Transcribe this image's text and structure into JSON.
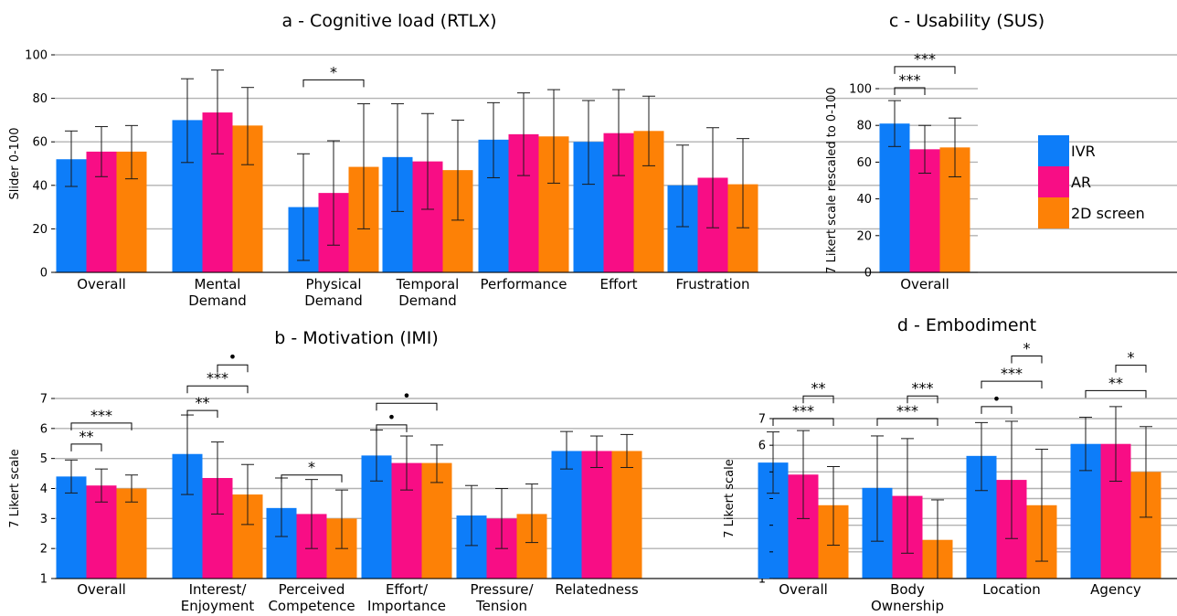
{
  "series_names": [
    "IVR",
    "AR",
    "2D screen"
  ],
  "colors": {
    "IVR": "#0d7df9",
    "AR": "#f80d85",
    "2D screen": "#fd8106"
  },
  "chart_data": [
    {
      "id": "a",
      "type": "bar",
      "title": "a - Cognitive load (RTLX)",
      "ylabel": "Slider 0-100",
      "ylim": [
        0,
        100
      ],
      "yticks": [
        0,
        20,
        40,
        60,
        80,
        100
      ],
      "grid": true,
      "categories": [
        "Overall",
        "Mental\nDemand",
        "Physical\nDemand",
        "Temporal\nDemand",
        "Performance",
        "Effort",
        "Frustration"
      ],
      "series": [
        {
          "name": "IVR",
          "values": [
            52,
            70,
            30,
            53,
            61,
            60,
            40
          ],
          "err_low": [
            39.5,
            50.5,
            5.5,
            28,
            43.5,
            40.5,
            21
          ],
          "err_high": [
            65,
            89,
            54.5,
            77.5,
            78,
            79,
            58.5
          ]
        },
        {
          "name": "AR",
          "values": [
            55.5,
            73.5,
            36.5,
            51,
            63.5,
            64,
            43.5
          ],
          "err_low": [
            44,
            54.5,
            12.5,
            29,
            44.5,
            44.5,
            20.5
          ],
          "err_high": [
            67,
            93,
            60.5,
            73,
            82.5,
            84,
            66.5
          ]
        },
        {
          "name": "2D screen",
          "values": [
            55.5,
            67.5,
            48.5,
            47,
            62.5,
            65,
            40.5
          ],
          "err_low": [
            43,
            49.5,
            20,
            24,
            41,
            49,
            20.5
          ],
          "err_high": [
            67.5,
            85,
            77.5,
            70,
            84,
            81,
            61.5
          ]
        }
      ],
      "significance": [
        {
          "category": 2,
          "from": 0,
          "to": 2,
          "level": 88.5,
          "label": "*"
        }
      ]
    },
    {
      "id": "b",
      "type": "bar",
      "title": "b - Motivation (IMI)",
      "ylabel": "7 Likert scale",
      "ylim": [
        1,
        7.5
      ],
      "yticks": [
        1,
        2,
        3,
        4,
        5,
        6,
        7
      ],
      "grid": true,
      "categories": [
        "Overall",
        "Interest/\nEnjoyment",
        "Perceived\nCompetence",
        "Effort/\nImportance",
        "Pressure/\nTension",
        "Relatedness"
      ],
      "series": [
        {
          "name": "IVR",
          "values": [
            4.4,
            5.15,
            3.35,
            5.1,
            3.1,
            5.25
          ],
          "err_low": [
            3.85,
            3.8,
            2.4,
            4.25,
            2.1,
            4.65
          ],
          "err_high": [
            4.95,
            6.45,
            4.35,
            5.95,
            4.1,
            5.9
          ]
        },
        {
          "name": "AR",
          "values": [
            4.1,
            4.35,
            3.15,
            4.85,
            3.0,
            5.25
          ],
          "err_low": [
            3.55,
            3.15,
            2.0,
            3.95,
            2.0,
            4.7
          ],
          "err_high": [
            4.65,
            5.55,
            4.3,
            5.75,
            4.0,
            5.75
          ]
        },
        {
          "name": "2D screen",
          "values": [
            4.0,
            3.8,
            3.0,
            4.85,
            3.15,
            5.25
          ],
          "err_low": [
            3.55,
            2.8,
            2.0,
            4.2,
            2.2,
            4.7
          ],
          "err_high": [
            4.45,
            4.8,
            3.95,
            5.45,
            4.15,
            5.8
          ]
        }
      ],
      "significance": [
        {
          "category": 0,
          "from": 0,
          "to": 1,
          "level": 5.48,
          "label": "**"
        },
        {
          "category": 0,
          "from": 0,
          "to": 2,
          "level": 6.18,
          "label": "***"
        },
        {
          "category": 1,
          "from": 0,
          "to": 1,
          "level": 6.6,
          "label": "**"
        },
        {
          "category": 1,
          "from": 0,
          "to": 2,
          "level": 7.42,
          "label": "***"
        },
        {
          "category": 1,
          "from": 1,
          "to": 2,
          "level": 8.12,
          "label": "•"
        },
        {
          "category": 2,
          "from": 0,
          "to": 2,
          "level": 4.45,
          "label": "*"
        },
        {
          "category": 3,
          "from": 0,
          "to": 1,
          "level": 6.12,
          "label": "•"
        },
        {
          "category": 3,
          "from": 0,
          "to": 2,
          "level": 6.84,
          "label": "•"
        }
      ]
    },
    {
      "id": "c",
      "type": "bar",
      "title": "c - Usability (SUS)",
      "ylabel": "7 Likert scale rescaled to 0-100",
      "ylim": [
        0,
        100
      ],
      "yticks": [
        0,
        20,
        40,
        60,
        80,
        100
      ],
      "grid": true,
      "categories": [
        "Overall"
      ],
      "series": [
        {
          "name": "IVR",
          "values": [
            81
          ],
          "err_low": [
            68.5
          ],
          "err_high": [
            93.5
          ]
        },
        {
          "name": "AR",
          "values": [
            67
          ],
          "err_low": [
            54
          ],
          "err_high": [
            80
          ]
        },
        {
          "name": "2D screen",
          "values": [
            68
          ],
          "err_low": [
            52
          ],
          "err_high": [
            84
          ]
        }
      ],
      "significance": [
        {
          "category": 0,
          "from": 0,
          "to": 1,
          "level": 100.5,
          "label": "***"
        },
        {
          "category": 0,
          "from": 0,
          "to": 2,
          "level": 112,
          "label": "***"
        }
      ]
    },
    {
      "id": "d",
      "type": "bar",
      "title": "d - Embodiment",
      "ylabel": "7 Likert scale",
      "ylim": [
        1,
        7.1
      ],
      "yticks": [
        1,
        2,
        3,
        4,
        5,
        6,
        7
      ],
      "grid": true,
      "categories": [
        "Overall",
        "Body\nOwnership",
        "Location",
        "Agency"
      ],
      "series": [
        {
          "name": "IVR",
          "values": [
            5.35,
            4.4,
            5.6,
            6.05
          ],
          "err_low": [
            4.2,
            2.4,
            4.3,
            5.05
          ],
          "err_high": [
            6.5,
            6.35,
            6.85,
            7.05
          ]
        },
        {
          "name": "AR",
          "values": [
            4.9,
            4.1,
            4.7,
            6.05
          ],
          "err_low": [
            3.25,
            1.95,
            2.5,
            4.65
          ],
          "err_high": [
            6.55,
            6.25,
            6.9,
            7.45
          ]
        },
        {
          "name": "2D screen",
          "values": [
            3.75,
            2.45,
            3.75,
            5.0
          ],
          "err_low": [
            2.25,
            1.0,
            1.65,
            3.3
          ],
          "err_high": [
            5.2,
            3.95,
            5.85,
            6.7
          ]
        }
      ],
      "significance": [
        {
          "category": 0,
          "from": 0,
          "to": 2,
          "level": 7.0,
          "label": "***"
        },
        {
          "category": 0,
          "from": 1,
          "to": 2,
          "level": 7.85,
          "label": "**"
        },
        {
          "category": 1,
          "from": 0,
          "to": 2,
          "level": 7.0,
          "label": "***"
        },
        {
          "category": 1,
          "from": 1,
          "to": 2,
          "level": 7.85,
          "label": "***"
        },
        {
          "category": 2,
          "from": 0,
          "to": 1,
          "level": 7.45,
          "label": "•"
        },
        {
          "category": 2,
          "from": 0,
          "to": 2,
          "level": 8.4,
          "label": "***"
        },
        {
          "category": 2,
          "from": 1,
          "to": 2,
          "level": 9.35,
          "label": "*"
        },
        {
          "category": 3,
          "from": 0,
          "to": 2,
          "level": 8.05,
          "label": "**"
        },
        {
          "category": 3,
          "from": 1,
          "to": 2,
          "level": 9.0,
          "label": "*"
        }
      ]
    }
  ]
}
